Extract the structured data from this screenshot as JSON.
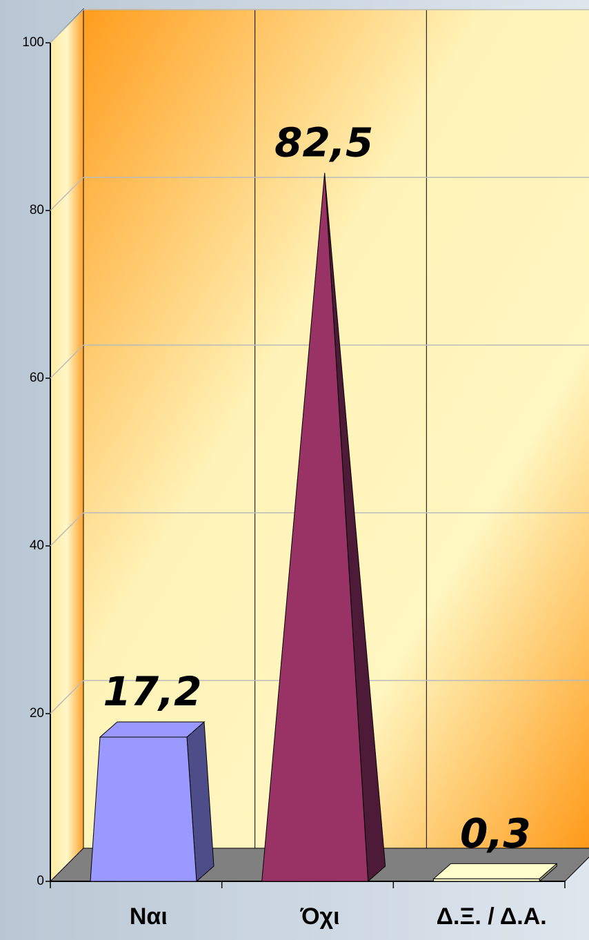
{
  "chart_data": {
    "type": "bar3d",
    "categories": [
      "Ναι",
      "Όχι",
      "Δ.Ξ. / Δ.Α."
    ],
    "values": [
      17.2,
      82.5,
      0.3
    ],
    "value_labels": [
      "17,2",
      "82,5",
      "0,3"
    ],
    "colors": [
      "#9999ff",
      "#993366",
      "#ffffcc"
    ],
    "ylim": [
      0,
      100
    ],
    "yticks": [
      0,
      20,
      40,
      60,
      80,
      100
    ],
    "grid": true
  }
}
